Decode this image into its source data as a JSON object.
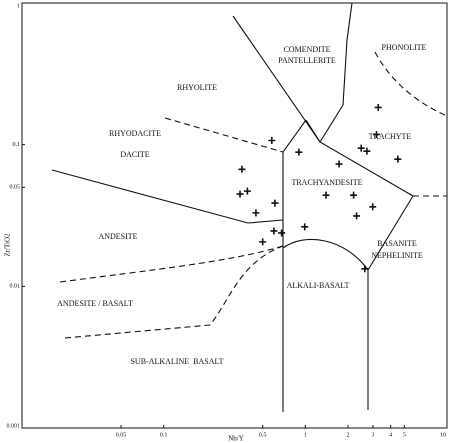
{
  "chart_data": {
    "type": "scatter",
    "x_label": "Nb/Y",
    "y_label": "Zr/TiO2",
    "x": [
      0.357,
      0.58,
      0.346,
      0.39,
      0.448,
      0.61,
      0.6,
      0.68,
      0.5,
      0.9,
      0.99,
      1.73,
      1.4,
      2.19,
      2.3,
      2.99,
      2.48,
      2.72,
      3.27,
      3.18,
      4.5,
      2.63
    ],
    "y": [
      0.067,
      0.107,
      0.0448,
      0.047,
      0.033,
      0.0387,
      0.0246,
      0.0238,
      0.0206,
      0.0885,
      0.0263,
      0.073,
      0.044,
      0.044,
      0.0314,
      0.0364,
      0.0945,
      0.09,
      0.183,
      0.118,
      0.079,
      0.0133
    ],
    "xlim": [
      0.01,
      10
    ],
    "ylim": [
      0.001,
      1
    ],
    "xticks": [
      0.05,
      0.1,
      0.5,
      1,
      2,
      3,
      4,
      5,
      10
    ],
    "yticks": [
      0.001,
      0.01,
      0.05,
      0.1,
      1
    ],
    "log_x": true,
    "log_y": true,
    "color": "#111",
    "annotations": [
      "RHYOLITE",
      "COMENDITE",
      "PANTELLERITE",
      "PHONOLITE",
      "RHYODACITE",
      "DACITE",
      "TRACHYTE",
      "TRACHYANDESITE",
      "ANDESITE",
      "BASANITE",
      "NEPHELINITE",
      "ANDESITE / BASALT",
      "ALKALI-BASALT",
      "SUB-ALKALINE  BASALT"
    ]
  }
}
